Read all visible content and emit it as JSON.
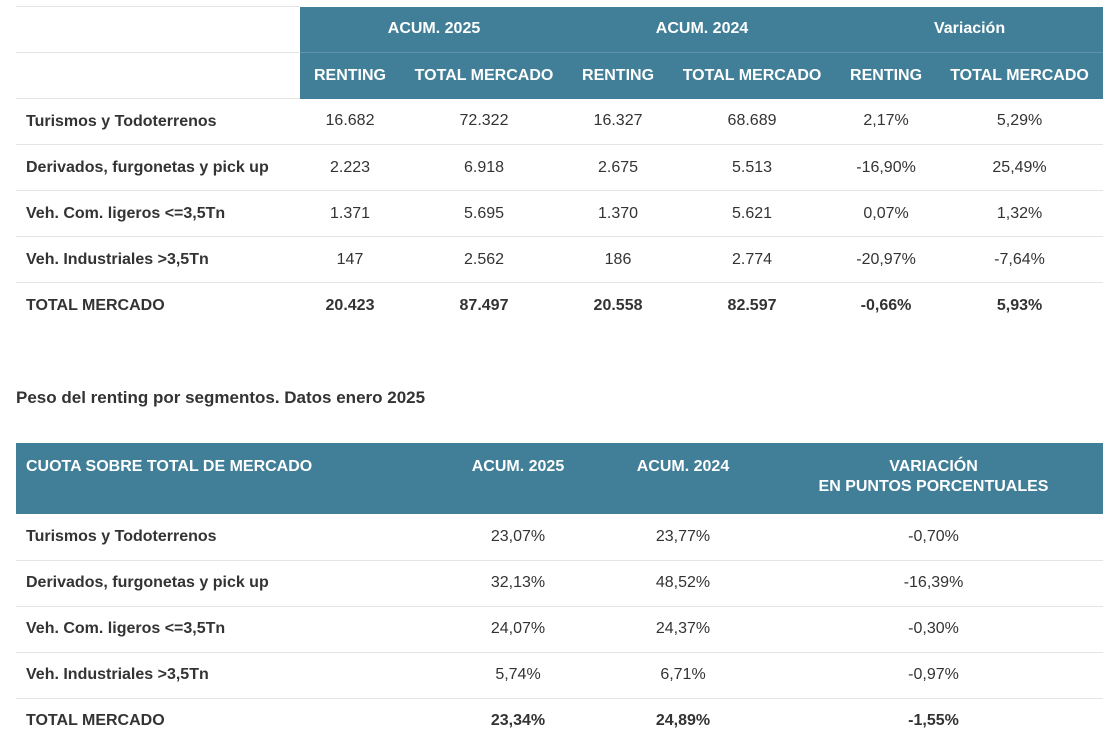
{
  "table1": {
    "groups": [
      "ACUM.  2025",
      "ACUM.  2024",
      "Variación"
    ],
    "subheaders": [
      "RENTING",
      "TOTAL MERCADO",
      "RENTING",
      "TOTAL MERCADO",
      "RENTING",
      "TOTAL MERCADO"
    ],
    "rows": [
      {
        "label": "Turismos y Todoterrenos",
        "cells": [
          "16.682",
          "72.322",
          "16.327",
          "68.689",
          "2,17%",
          "5,29%"
        ]
      },
      {
        "label": "Derivados, furgonetas y pick up",
        "cells": [
          "2.223",
          "6.918",
          "2.675",
          "5.513",
          "-16,90%",
          "25,49%"
        ]
      },
      {
        "label": "Veh. Com. ligeros <=3,5Tn",
        "cells": [
          "1.371",
          "5.695",
          "1.370",
          "5.621",
          "0,07%",
          "1,32%"
        ]
      },
      {
        "label": "Veh. Industriales >3,5Tn",
        "cells": [
          "147",
          "2.562",
          "186",
          "2.774",
          "-20,97%",
          "-7,64%"
        ]
      },
      {
        "label": "TOTAL MERCADO",
        "cells": [
          "20.423",
          "87.497",
          "20.558",
          "82.597",
          "-0,66%",
          "5,93%"
        ]
      }
    ]
  },
  "subtitle": "Peso del renting por segmentos. Datos enero 2025",
  "table2": {
    "headers": [
      "CUOTA SOBRE TOTAL DE MERCADO",
      "ACUM. 2025",
      "ACUM. 2024",
      "VARIACIÓN",
      "EN PUNTOS PORCENTUALES"
    ],
    "rows": [
      {
        "label": "Turismos y Todoterrenos",
        "cells": [
          "23,07%",
          "23,77%",
          "-0,70%"
        ]
      },
      {
        "label": "Derivados, furgonetas y pick up",
        "cells": [
          "32,13%",
          "48,52%",
          "-16,39%"
        ]
      },
      {
        "label": "Veh. Com. ligeros <=3,5Tn",
        "cells": [
          "24,07%",
          "24,37%",
          "-0,30%"
        ]
      },
      {
        "label": "Veh. Industriales >3,5Tn",
        "cells": [
          "5,74%",
          "6,71%",
          "-0,97%"
        ]
      },
      {
        "label": "TOTAL MERCADO",
        "cells": [
          "23,34%",
          "24,89%",
          "-1,55%"
        ]
      }
    ]
  }
}
